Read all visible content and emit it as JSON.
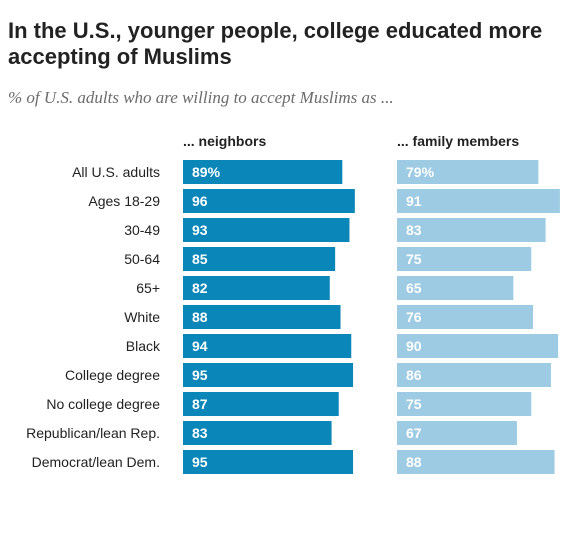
{
  "colors": {
    "neighbors": "#0b86b8",
    "family": "#9dcbe3",
    "neighbors_label": "#ffffff",
    "family_label": "#ffffff"
  },
  "chart_data": {
    "type": "bar",
    "orientation": "horizontal",
    "title": "In the U.S., younger people, college educated more accepting of Muslims",
    "subtitle": "% of U.S. adults who are willing to accept Muslims as ...",
    "xlim": [
      0,
      100
    ],
    "grid": false,
    "legend": "none",
    "categories": [
      "All U.S. adults",
      "Ages 18-29",
      "30-49",
      "50-64",
      "65+",
      "White",
      "Black",
      "College degree",
      "No college degree",
      "Republican/lean Rep.",
      "Democrat/lean Dem."
    ],
    "groups": [
      [
        0
      ],
      [
        1,
        2,
        3,
        4
      ],
      [
        5,
        6
      ],
      [
        7,
        8
      ],
      [
        9,
        10
      ]
    ],
    "series": [
      {
        "name": "... neighbors",
        "values": [
          89,
          96,
          93,
          85,
          82,
          88,
          94,
          95,
          87,
          83,
          95
        ],
        "labels": [
          "89%",
          "96",
          "93",
          "85",
          "82",
          "88",
          "94",
          "95",
          "87",
          "83",
          "95"
        ]
      },
      {
        "name": "... family members",
        "values": [
          79,
          91,
          83,
          75,
          65,
          76,
          90,
          86,
          75,
          67,
          88
        ],
        "labels": [
          "79%",
          "91",
          "83",
          "75",
          "65",
          "76",
          "90",
          "86",
          "75",
          "67",
          "88"
        ]
      }
    ]
  }
}
